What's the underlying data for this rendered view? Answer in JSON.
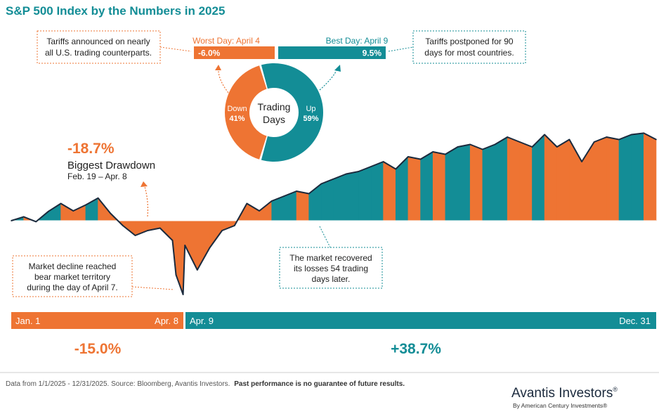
{
  "title": "S&P 500 Index by the Numbers in 2025",
  "colors": {
    "orange": "#EE7433",
    "teal": "#138D96",
    "line": "#1B2A3D",
    "title": "#138D96"
  },
  "worst_day": {
    "label": "Worst Day: April 4",
    "value": "-6.0%"
  },
  "best_day": {
    "label": "Best Day: April 9",
    "value": "9.5%"
  },
  "note_tariffs": [
    "Tariffs announced on nearly",
    "all U.S. trading counterparts."
  ],
  "note_postponed": [
    "Tariffs postponed for 90",
    "days for most countries."
  ],
  "note_bear": [
    "Market decline reached",
    "bear market territory",
    "during the day of April 7."
  ],
  "note_recovered": [
    "The market recovered",
    "its losses 54 trading",
    "days later."
  ],
  "drawdown": {
    "value": "-18.7%",
    "label": "Biggest Drawdown",
    "dates": "Feb. 19 – Apr. 8"
  },
  "periods": {
    "first": {
      "start": "Jan. 1",
      "end": "Apr. 8",
      "return": "-15.0%"
    },
    "second": {
      "start": "Apr. 9",
      "end": "Dec. 31",
      "return": "+38.7%"
    }
  },
  "footer": {
    "source": "Data from 1/1/2025 - 12/31/2025. Source: Bloomberg, Avantis Investors.",
    "disclaimer": "Past performance is no guarantee of future results.",
    "brand": "Avantis Investors",
    "brand_mark": "®",
    "sub": "By American Century Investments®"
  },
  "chart_data": [
    {
      "type": "pie",
      "title": "Trading Days",
      "categories": [
        "Down",
        "Up"
      ],
      "values": [
        41,
        59
      ],
      "value_labels": [
        "41%",
        "59%"
      ],
      "colors": [
        "#EE7433",
        "#138D96"
      ]
    },
    {
      "type": "area",
      "title": "",
      "series_note": "cumulative return of the S&P 500 Index, approximate",
      "x": [
        "2025-01-01",
        "2025-01-08",
        "2025-01-15",
        "2025-01-22",
        "2025-01-29",
        "2025-02-05",
        "2025-02-12",
        "2025-02-19",
        "2025-02-26",
        "2025-03-05",
        "2025-03-12",
        "2025-03-19",
        "2025-03-26",
        "2025-04-02",
        "2025-04-04",
        "2025-04-08",
        "2025-04-09",
        "2025-04-16",
        "2025-04-23",
        "2025-04-30",
        "2025-05-07",
        "2025-05-14",
        "2025-05-21",
        "2025-05-28",
        "2025-06-04",
        "2025-06-11",
        "2025-06-18",
        "2025-06-25",
        "2025-07-02",
        "2025-07-09",
        "2025-07-16",
        "2025-07-23",
        "2025-07-30",
        "2025-08-06",
        "2025-08-13",
        "2025-08-20",
        "2025-08-27",
        "2025-09-03",
        "2025-09-10",
        "2025-09-17",
        "2025-09-24",
        "2025-10-01",
        "2025-10-08",
        "2025-10-15",
        "2025-10-22",
        "2025-10-29",
        "2025-11-05",
        "2025-11-12",
        "2025-11-19",
        "2025-11-26",
        "2025-12-03",
        "2025-12-10",
        "2025-12-17",
        "2025-12-24",
        "2025-12-31"
      ],
      "y": [
        0.0,
        0.8,
        -0.2,
        1.9,
        3.5,
        2.0,
        3.2,
        4.6,
        1.5,
        -1.0,
        -3.0,
        -2.0,
        -1.5,
        -4.0,
        -11.0,
        -15.0,
        -5.0,
        -10.0,
        -5.5,
        -2.0,
        -1.0,
        3.5,
        2.0,
        4.0,
        5.0,
        6.0,
        5.5,
        7.5,
        8.5,
        9.5,
        10.0,
        11.0,
        12.0,
        10.5,
        13.0,
        12.5,
        14.0,
        13.5,
        15.0,
        15.5,
        14.5,
        15.5,
        17.0,
        16.0,
        15.0,
        17.5,
        15.0,
        16.5,
        12.0,
        16.0,
        17.0,
        16.5,
        17.5,
        17.8,
        16.5
      ],
      "ylim": [
        -16,
        19
      ]
    }
  ]
}
